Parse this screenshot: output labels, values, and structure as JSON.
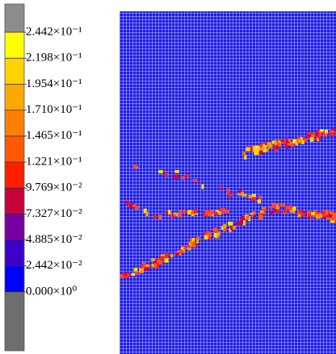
{
  "colorbar": {
    "labels": [
      "2.442×10⁻¹",
      "2.198×10⁻¹",
      "1.954×10⁻¹",
      "1.710×10⁻¹",
      "1.465×10⁻¹",
      "1.221×10⁻¹",
      "9.769×10⁻²",
      "7.327×10⁻²",
      "4.885×10⁻²",
      "2.442×10⁻²",
      "0.000×10⁰"
    ],
    "colors": [
      "#8c8c8c",
      "#ffff00",
      "#ffd200",
      "#ffa800",
      "#ff8000",
      "#ff5a00",
      "#ff1e00",
      "#c8003c",
      "#7800a0",
      "#3c00c8",
      "#0000ff",
      "#6e6e6e"
    ]
  }
}
